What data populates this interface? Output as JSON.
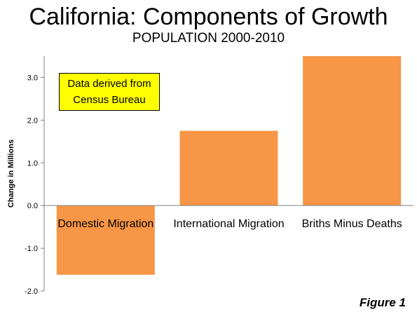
{
  "header": {
    "title": "California: Components of Growth",
    "subtitle": "POPULATION 2000-2010"
  },
  "note": {
    "line1": "Data derived from",
    "line2": "Census Bureau"
  },
  "figure_label": "Figure 1",
  "colors": {
    "bar": "#f79646",
    "note_bg": "#ffff00",
    "axis": "#808080"
  },
  "chart_data": {
    "type": "bar",
    "categories": [
      "Domestic Migration",
      "International Migration",
      "Briths Minus Deaths"
    ],
    "values": [
      -1.62,
      1.75,
      3.5
    ],
    "ylabel": "Change in Millions",
    "ylim": [
      -2.0,
      3.5
    ],
    "yticks": [
      "-2.0",
      "-1.0",
      "0.0",
      "1.0",
      "2.0",
      "3.0"
    ],
    "grid": false,
    "legend": "none"
  }
}
